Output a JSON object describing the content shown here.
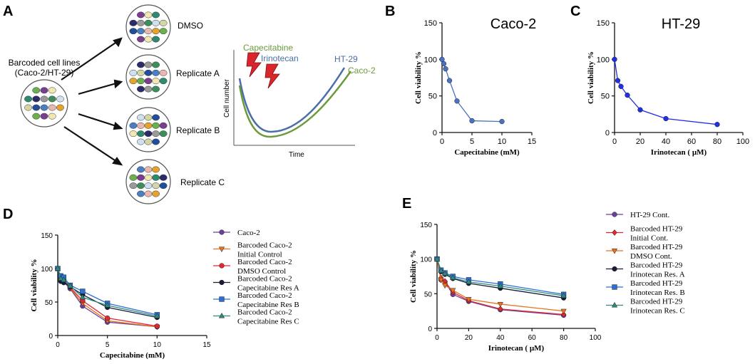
{
  "panels": {
    "A": {
      "letter": "A",
      "source_label_line1": "Barcoded cell lines",
      "source_label_line2": "(Caco-2/HT-29)",
      "conditions": [
        "DMSO",
        "Replicate A",
        "Replicate B",
        "Replicate C"
      ],
      "schematic": {
        "ylabel": "Cell number",
        "xlabel": "Time",
        "drug1": "Capecitabine",
        "drug2": "Irinotecan",
        "curve1": "HT-29",
        "curve2": "Caco-2",
        "colors": {
          "ht29": "#4a6fa5",
          "caco2": "#6b9a3a",
          "drug1": "#6b9a3a",
          "drug2": "#4a6fa5",
          "bolt": "#d9262c"
        }
      }
    },
    "B": {
      "letter": "B"
    },
    "C": {
      "letter": "C"
    },
    "D": {
      "letter": "D"
    },
    "E": {
      "letter": "E"
    }
  },
  "chart_data": [
    {
      "id": "B",
      "type": "line",
      "title": "Caco-2",
      "xlabel": "Capecitabine (mM)",
      "ylabel": "Cell viability %",
      "xlim": [
        0,
        15
      ],
      "ylim": [
        0,
        150
      ],
      "xticks": [
        0,
        5,
        10,
        15
      ],
      "yticks": [
        0,
        50,
        100,
        150
      ],
      "series": [
        {
          "name": "Caco-2",
          "color": "#4a72c4",
          "marker": "circle",
          "x": [
            0,
            0.3,
            0.6,
            1.25,
            2.5,
            5,
            10
          ],
          "y": [
            100,
            94,
            87,
            71,
            43,
            16,
            15
          ]
        }
      ]
    },
    {
      "id": "C",
      "type": "line",
      "title": "HT-29",
      "xlabel": "Irinotecan ( µM)",
      "ylabel": "Cell viability %",
      "xlim": [
        0,
        100
      ],
      "ylim": [
        0,
        150
      ],
      "xticks": [
        0,
        20,
        40,
        60,
        80,
        100
      ],
      "yticks": [
        0,
        50,
        100,
        150
      ],
      "series": [
        {
          "name": "HT-29",
          "color": "#1f2fe6",
          "marker": "circle",
          "x": [
            0,
            2.5,
            5,
            10,
            20,
            40,
            80
          ],
          "y": [
            100,
            71,
            63,
            51,
            31,
            19,
            11
          ]
        }
      ]
    },
    {
      "id": "D",
      "type": "line",
      "title": "",
      "xlabel": "Capecitabine (mM)",
      "ylabel": "Cell viability %",
      "xlim": [
        0,
        15
      ],
      "ylim": [
        0,
        150
      ],
      "xticks": [
        0,
        5,
        10,
        15
      ],
      "yticks": [
        0,
        50,
        100,
        150
      ],
      "legend": "right",
      "series": [
        {
          "name": "Caco-2",
          "color": "#6a3fa0",
          "marker": "circle",
          "x": [
            0,
            0.3,
            0.6,
            1.25,
            2.5,
            5,
            10
          ],
          "y": [
            100,
            82,
            80,
            70,
            44,
            20,
            13
          ]
        },
        {
          "name": "Barcoded Caco-2 Initial Control",
          "color": "#e8731f",
          "marker": "triangle-down",
          "x": [
            0,
            0.3,
            0.6,
            1.25,
            2.5,
            5,
            10
          ],
          "y": [
            100,
            83,
            81,
            71,
            48,
            22,
            13
          ]
        },
        {
          "name": "Barcoded Caco-2 DMSO Control",
          "color": "#e0282e",
          "marker": "circle",
          "x": [
            0,
            0.3,
            0.6,
            1.25,
            2.5,
            5,
            10
          ],
          "y": [
            100,
            84,
            82,
            72,
            52,
            26,
            14
          ]
        },
        {
          "name": "Barcoded Caco-2 Capecitabine Res A",
          "color": "#1a1a3a",
          "marker": "circle",
          "x": [
            0,
            0.3,
            0.6,
            1.25,
            2.5,
            5,
            10
          ],
          "y": [
            100,
            81,
            79,
            73,
            61,
            42,
            27
          ]
        },
        {
          "name": "Barcoded Caco-2 Capecitabine Res B",
          "color": "#2b6fd6",
          "marker": "square",
          "x": [
            0,
            0.3,
            0.6,
            1.25,
            2.5,
            5,
            10
          ],
          "y": [
            100,
            89,
            87,
            75,
            66,
            48,
            31
          ]
        },
        {
          "name": "Barcoded Caco-2 Capecitabine Res C",
          "color": "#2e8b7a",
          "marker": "triangle-up",
          "x": [
            0,
            0.3,
            0.6,
            1.25,
            2.5,
            5,
            10
          ],
          "y": [
            100,
            85,
            83,
            74,
            57,
            45,
            29
          ]
        }
      ]
    },
    {
      "id": "E",
      "type": "line",
      "title": "",
      "xlabel": "Irinotecan ( µM)",
      "ylabel": "Cell viability %",
      "xlim": [
        0,
        100
      ],
      "ylim": [
        0,
        150
      ],
      "xticks": [
        0,
        20,
        40,
        60,
        80,
        100
      ],
      "yticks": [
        0,
        50,
        100,
        150
      ],
      "legend": "right",
      "series": [
        {
          "name": "HT-29 Cont.",
          "color": "#6a3fa0",
          "marker": "circle",
          "x": [
            0,
            2.5,
            5,
            10,
            20,
            40,
            80
          ],
          "y": [
            100,
            70,
            67,
            49,
            39,
            27,
            19
          ]
        },
        {
          "name": "Barcoded HT-29 Initial Cont.",
          "color": "#e0282e",
          "marker": "diamond",
          "x": [
            0,
            2.5,
            5,
            10,
            20,
            40,
            80
          ],
          "y": [
            100,
            73,
            68,
            52,
            40,
            28,
            20
          ]
        },
        {
          "name": "Barcoded HT-29 DMSO Cont.",
          "color": "#e8731f",
          "marker": "triangle-down",
          "x": [
            0,
            2.5,
            5,
            10,
            20,
            40,
            80
          ],
          "y": [
            100,
            70,
            62,
            55,
            42,
            35,
            25
          ]
        },
        {
          "name": "Barcoded HT-29 Irinotecan Res. A",
          "color": "#1a1a3a",
          "marker": "circle",
          "x": [
            0,
            2.5,
            5,
            10,
            20,
            40,
            80
          ],
          "y": [
            100,
            82,
            78,
            72,
            65,
            58,
            44
          ]
        },
        {
          "name": "Barcoded HT-29 Irinotecan Res. B",
          "color": "#2b6fd6",
          "marker": "square",
          "x": [
            0,
            2.5,
            5,
            10,
            20,
            40,
            80
          ],
          "y": [
            100,
            84,
            80,
            75,
            70,
            64,
            49
          ]
        },
        {
          "name": "Barcoded HT-29 Irinotecan Res. C",
          "color": "#2e8b7a",
          "marker": "triangle-up",
          "x": [
            0,
            2.5,
            5,
            10,
            20,
            40,
            80
          ],
          "y": [
            100,
            83,
            79,
            73,
            67,
            61,
            47
          ]
        }
      ]
    }
  ]
}
